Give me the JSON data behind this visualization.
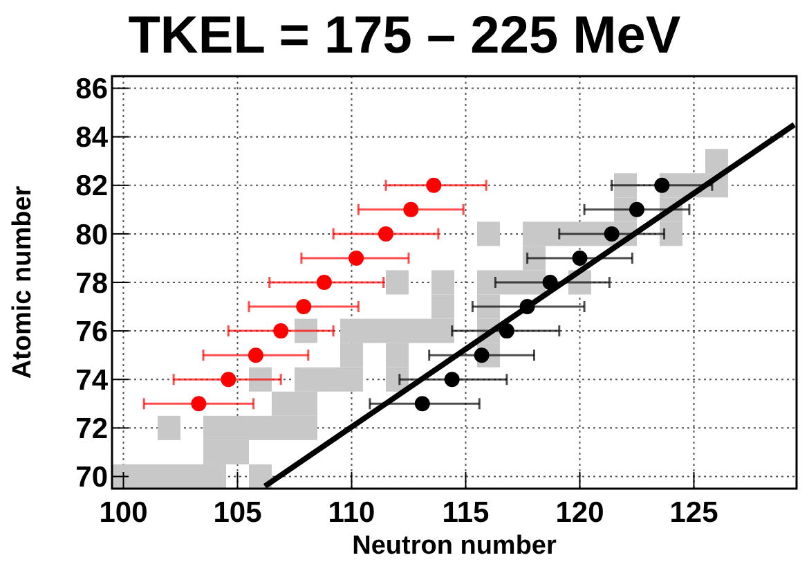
{
  "chart_data": {
    "type": "scatter",
    "title": "TKEL = 175 – 225 MeV",
    "xlabel": "Neutron number",
    "ylabel": "Atomic number",
    "xlim": [
      99.5,
      129.5
    ],
    "ylim": [
      69.5,
      86.5
    ],
    "xticks": [
      100,
      105,
      110,
      115,
      120,
      125
    ],
    "yticks": [
      70,
      72,
      74,
      76,
      78,
      80,
      82,
      84,
      86
    ],
    "grid": true,
    "series": [
      {
        "marker": "square",
        "color": "#c8c8c8",
        "x": [
          100,
          101,
          102,
          103,
          104,
          106,
          104,
          105,
          102,
          104,
          105,
          106,
          107,
          108,
          107,
          108,
          106,
          108,
          109,
          110,
          112,
          110,
          112,
          116,
          108,
          110,
          111,
          112,
          113,
          114,
          116,
          114,
          116,
          112,
          114,
          116,
          117,
          118,
          120,
          118,
          116,
          118,
          119,
          120,
          121,
          122,
          124,
          122,
          124,
          122,
          124,
          125,
          126,
          126
        ],
        "values": [
          70,
          70,
          70,
          70,
          70,
          70,
          71,
          71,
          72,
          72,
          72,
          72,
          72,
          72,
          73,
          73,
          74,
          74,
          74,
          74,
          74,
          75,
          75,
          75,
          76,
          76,
          76,
          76,
          76,
          76,
          76,
          77,
          77,
          78,
          78,
          78,
          78,
          78,
          78,
          79,
          80,
          80,
          80,
          80,
          80,
          80,
          80,
          81,
          81,
          82,
          82,
          82,
          82,
          83
        ]
      },
      {
        "marker": "circle",
        "color": "#ff0000",
        "x": [
          103.3,
          104.6,
          105.8,
          106.9,
          107.9,
          108.8,
          110.2,
          111.5,
          112.6,
          113.6
        ],
        "values": [
          73,
          74,
          75,
          76,
          77,
          78,
          79,
          80,
          81,
          82
        ],
        "xerrors": [
          [
            100.9,
            105.7
          ],
          [
            102.2,
            106.9
          ],
          [
            103.5,
            108.1
          ],
          [
            104.6,
            109.2
          ],
          [
            105.5,
            110.3
          ],
          [
            106.4,
            111.4
          ],
          [
            107.8,
            112.5
          ],
          [
            109.2,
            113.8
          ],
          [
            110.3,
            114.9
          ],
          [
            111.5,
            115.9
          ]
        ]
      },
      {
        "marker": "circle",
        "color": "#000000",
        "x": [
          113.1,
          114.4,
          115.7,
          116.8,
          117.7,
          118.7,
          120.0,
          121.4,
          122.5,
          123.6
        ],
        "values": [
          73,
          74,
          75,
          76,
          77,
          78,
          79,
          80,
          81,
          82
        ],
        "xerrors": [
          [
            110.8,
            115.6
          ],
          [
            112.1,
            116.8
          ],
          [
            113.4,
            118.0
          ],
          [
            114.4,
            119.1
          ],
          [
            115.3,
            120.2
          ],
          [
            116.3,
            121.3
          ],
          [
            117.7,
            122.3
          ],
          [
            119.1,
            123.7
          ],
          [
            120.2,
            124.8
          ],
          [
            121.4,
            125.8
          ]
        ]
      },
      {
        "type": "line",
        "marker": "none",
        "line_style": "solid",
        "color": "#000000",
        "x": [
          106.2,
          129.4
        ],
        "values": [
          69.6,
          84.5
        ]
      }
    ]
  }
}
